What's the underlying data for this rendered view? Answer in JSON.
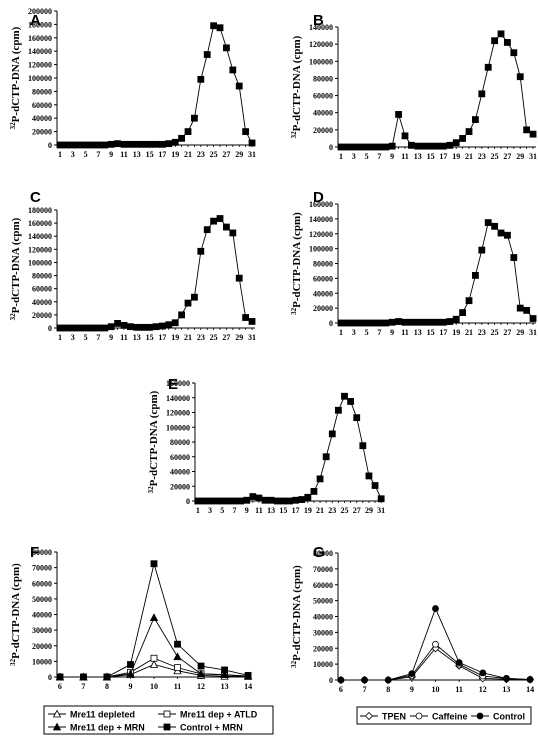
{
  "chart_data": [
    {
      "panel": "A",
      "type": "line",
      "ylabel": "32P-dCTP-DNA (cpm)",
      "ylim": [
        0,
        200000
      ],
      "yticks": [
        0,
        20000,
        40000,
        60000,
        80000,
        100000,
        120000,
        140000,
        160000,
        180000,
        200000
      ],
      "xticks": [
        "1",
        "3",
        "5",
        "7",
        "9",
        "11",
        "13",
        "15",
        "17",
        "19",
        "21",
        "23",
        "25",
        "27",
        "29",
        "31"
      ],
      "series": [
        {
          "marker": "filled-square",
          "x": [
            1,
            2,
            3,
            4,
            5,
            6,
            7,
            8,
            9,
            10,
            11,
            12,
            13,
            14,
            15,
            16,
            17,
            18,
            19,
            20,
            21,
            22,
            23,
            24,
            25,
            26,
            27,
            28,
            29,
            30,
            31
          ],
          "y": [
            0,
            0,
            0,
            0,
            0,
            0,
            0,
            0,
            1000,
            2000,
            1000,
            1000,
            1000,
            1000,
            1000,
            1000,
            1000,
            2000,
            4000,
            10000,
            20000,
            40000,
            98000,
            135000,
            178000,
            175000,
            145000,
            112000,
            88000,
            20000,
            3000
          ]
        }
      ]
    },
    {
      "panel": "B",
      "type": "line",
      "ylabel": "32P-dCTP-DNA (cpm)",
      "ylim": [
        0,
        140000
      ],
      "yticks": [
        0,
        20000,
        40000,
        60000,
        80000,
        100000,
        120000,
        140000
      ],
      "xticks": [
        "1",
        "3",
        "5",
        "7",
        "9",
        "11",
        "13",
        "15",
        "17",
        "19",
        "21",
        "23",
        "25",
        "27",
        "29",
        "31"
      ],
      "series": [
        {
          "marker": "filled-square",
          "x": [
            1,
            2,
            3,
            4,
            5,
            6,
            7,
            8,
            9,
            10,
            11,
            12,
            13,
            14,
            15,
            16,
            17,
            18,
            19,
            20,
            21,
            22,
            23,
            24,
            25,
            26,
            27,
            28,
            29,
            30,
            31
          ],
          "y": [
            0,
            0,
            0,
            0,
            0,
            0,
            0,
            0,
            1000,
            38000,
            13000,
            2000,
            1000,
            1000,
            1000,
            1000,
            1000,
            2000,
            5000,
            10000,
            18000,
            32000,
            62000,
            93000,
            124000,
            132000,
            122000,
            110000,
            82000,
            20000,
            15000
          ]
        }
      ]
    },
    {
      "panel": "C",
      "type": "line",
      "ylabel": "32P-dCTP-DNA (cpm)",
      "ylim": [
        0,
        180000
      ],
      "yticks": [
        0,
        20000,
        40000,
        60000,
        80000,
        100000,
        120000,
        140000,
        160000,
        180000
      ],
      "xticks": [
        "1",
        "3",
        "5",
        "7",
        "9",
        "11",
        "13",
        "15",
        "17",
        "19",
        "21",
        "23",
        "25",
        "27",
        "29",
        "31"
      ],
      "series": [
        {
          "marker": "filled-square",
          "x": [
            1,
            2,
            3,
            4,
            5,
            6,
            7,
            8,
            9,
            10,
            11,
            12,
            13,
            14,
            15,
            16,
            17,
            18,
            19,
            20,
            21,
            22,
            23,
            24,
            25,
            26,
            27,
            28,
            29,
            30,
            31
          ],
          "y": [
            0,
            0,
            0,
            0,
            0,
            0,
            0,
            0,
            2000,
            7000,
            4000,
            2000,
            1000,
            1000,
            1000,
            2000,
            3000,
            5000,
            8000,
            20000,
            38000,
            47000,
            117000,
            150000,
            163000,
            167000,
            154000,
            145000,
            76000,
            16000,
            10000
          ]
        }
      ]
    },
    {
      "panel": "D",
      "type": "line",
      "ylabel": "32P-dCTP-DNA (cpm)",
      "ylim": [
        0,
        160000
      ],
      "yticks": [
        0,
        20000,
        40000,
        60000,
        80000,
        100000,
        120000,
        140000,
        160000
      ],
      "xticks": [
        "1",
        "3",
        "5",
        "7",
        "9",
        "11",
        "13",
        "15",
        "17",
        "19",
        "21",
        "23",
        "25",
        "27",
        "29",
        "31"
      ],
      "series": [
        {
          "marker": "filled-square",
          "x": [
            1,
            2,
            3,
            4,
            5,
            6,
            7,
            8,
            9,
            10,
            11,
            12,
            13,
            14,
            15,
            16,
            17,
            18,
            19,
            20,
            21,
            22,
            23,
            24,
            25,
            26,
            27,
            28,
            29,
            30,
            31
          ],
          "y": [
            0,
            0,
            0,
            0,
            0,
            0,
            0,
            0,
            1000,
            2000,
            1000,
            1000,
            1000,
            1000,
            1000,
            1000,
            1000,
            2000,
            5000,
            14000,
            30000,
            64000,
            98000,
            135000,
            130000,
            121000,
            118000,
            88000,
            20000,
            17000,
            6000
          ]
        }
      ]
    },
    {
      "panel": "E",
      "type": "line",
      "ylabel": "32P-dCTP-DNA (cpm)",
      "ylim": [
        0,
        160000
      ],
      "yticks": [
        0,
        20000,
        40000,
        60000,
        80000,
        100000,
        120000,
        140000,
        160000
      ],
      "xticks": [
        "1",
        "3",
        "5",
        "7",
        "9",
        "11",
        "13",
        "15",
        "17",
        "19",
        "21",
        "23",
        "25",
        "27",
        "29",
        "31"
      ],
      "series": [
        {
          "marker": "filled-square",
          "x": [
            1,
            2,
            3,
            4,
            5,
            6,
            7,
            8,
            9,
            10,
            11,
            12,
            13,
            14,
            15,
            16,
            17,
            18,
            19,
            20,
            21,
            22,
            23,
            24,
            25,
            26,
            27,
            28,
            29,
            30,
            31
          ],
          "y": [
            0,
            0,
            0,
            0,
            0,
            0,
            0,
            0,
            1000,
            6000,
            4000,
            1000,
            1000,
            0,
            0,
            0,
            1000,
            2000,
            5000,
            13000,
            30000,
            60000,
            91000,
            123000,
            142000,
            135000,
            113000,
            75000,
            34000,
            21000,
            3000
          ]
        }
      ]
    },
    {
      "panel": "F",
      "type": "line",
      "ylabel": "32P-dCTP-DNA (cpm)",
      "ylim": [
        0,
        80000
      ],
      "yticks": [
        0,
        10000,
        20000,
        30000,
        40000,
        50000,
        60000,
        70000,
        80000
      ],
      "xticks": [
        "6",
        "7",
        "8",
        "9",
        "10",
        "11",
        "12",
        "13",
        "14"
      ],
      "series": [
        {
          "name": "Mre11 depleted",
          "marker": "open-triangle",
          "x": [
            6,
            7,
            8,
            9,
            10,
            11,
            12,
            13,
            14
          ],
          "y": [
            0,
            0,
            0,
            1500,
            8000,
            4000,
            1000,
            500,
            500
          ]
        },
        {
          "name": "Mre11 dep + ATLD",
          "marker": "open-square",
          "x": [
            6,
            7,
            8,
            9,
            10,
            11,
            12,
            13,
            14
          ],
          "y": [
            0,
            0,
            0,
            3000,
            12000,
            6000,
            2000,
            1500,
            500
          ]
        },
        {
          "name": "Mre11 dep + MRN",
          "marker": "filled-triangle",
          "x": [
            6,
            7,
            8,
            9,
            10,
            11,
            12,
            13,
            14
          ],
          "y": [
            0,
            0,
            0,
            2000,
            38000,
            13000,
            2000,
            1500,
            500
          ]
        },
        {
          "name": "Control + MRN",
          "marker": "filled-square",
          "x": [
            6,
            7,
            8,
            9,
            10,
            11,
            12,
            13,
            14
          ],
          "y": [
            0,
            0,
            0,
            8000,
            72500,
            21000,
            7000,
            4500,
            1000
          ]
        }
      ]
    },
    {
      "panel": "G",
      "type": "line",
      "ylabel": "32P-dCTP-DNA (cpm)",
      "ylim": [
        0,
        80000
      ],
      "yticks": [
        0,
        10000,
        20000,
        30000,
        40000,
        50000,
        60000,
        70000,
        80000
      ],
      "xticks": [
        "6",
        "7",
        "8",
        "9",
        "10",
        "11",
        "12",
        "13",
        "14"
      ],
      "series": [
        {
          "name": "TPEN",
          "marker": "open-diamond",
          "x": [
            6,
            7,
            8,
            9,
            10,
            11,
            12,
            13,
            14
          ],
          "y": [
            0,
            0,
            0,
            2000,
            20000,
            9000,
            1000,
            500,
            300
          ]
        },
        {
          "name": "Caffeine",
          "marker": "open-circle",
          "x": [
            6,
            7,
            8,
            9,
            10,
            11,
            12,
            13,
            14
          ],
          "y": [
            0,
            0,
            0,
            3000,
            22500,
            10000,
            2500,
            1000,
            300
          ]
        },
        {
          "name": "Control",
          "marker": "filled-circle",
          "x": [
            6,
            7,
            8,
            9,
            10,
            11,
            12,
            13,
            14
          ],
          "y": [
            0,
            0,
            0,
            4000,
            45000,
            11000,
            4500,
            1000,
            300
          ]
        }
      ]
    }
  ]
}
